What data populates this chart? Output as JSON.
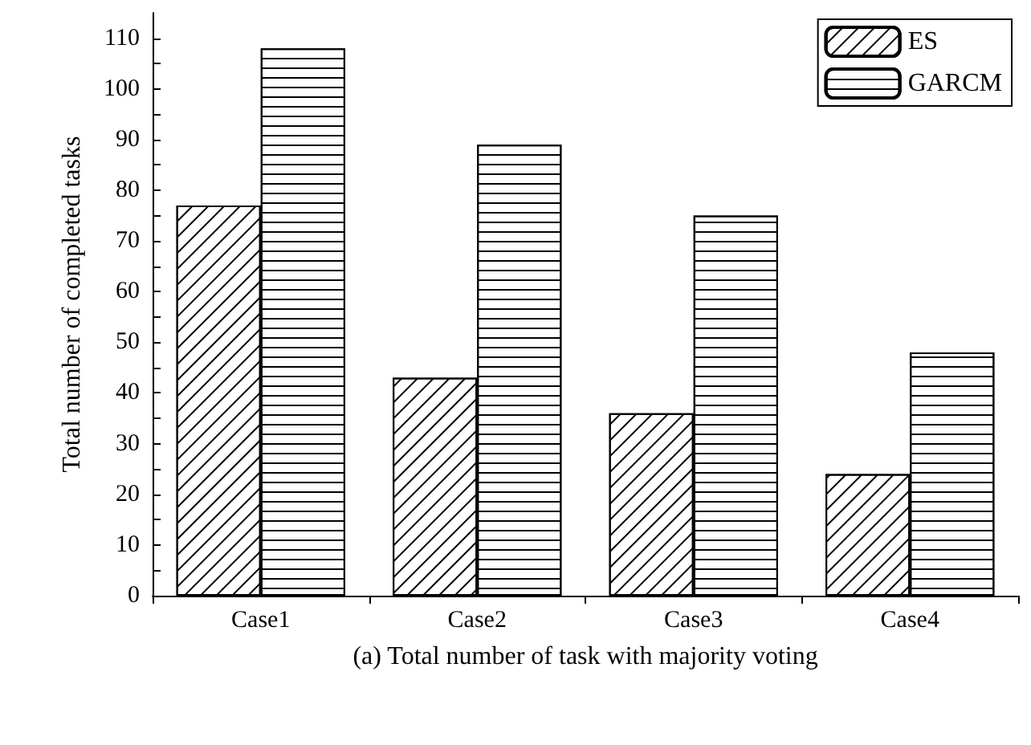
{
  "chart_data": {
    "type": "bar",
    "xlabel": "(a) Total number of task with majority voting",
    "ylabel": "Total number of completed tasks",
    "categories": [
      "Case1",
      "Case2",
      "Case3",
      "Case4"
    ],
    "series": [
      {
        "name": "ES",
        "color": "#000000",
        "values": [
          77,
          43,
          36,
          24
        ]
      },
      {
        "name": "GARCM",
        "color": "#000000",
        "values": [
          108,
          89,
          75,
          48
        ]
      }
    ],
    "ylim": [
      0,
      115
    ],
    "yticks": [
      0,
      10,
      20,
      30,
      40,
      50,
      60,
      70,
      80,
      90,
      100,
      110
    ],
    "grid": false,
    "legend": "top right"
  }
}
